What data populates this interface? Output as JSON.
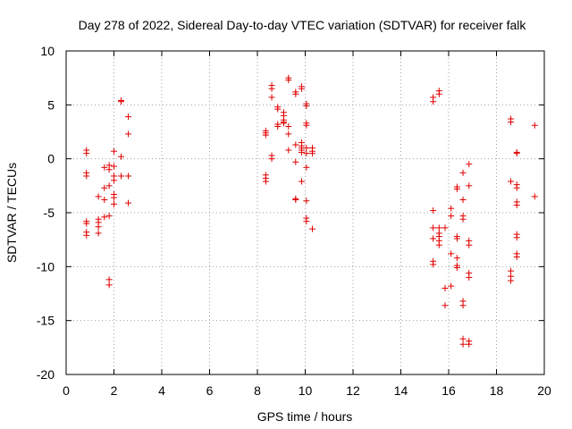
{
  "chart_data": {
    "type": "scatter",
    "title": "Day 278 of 2022, Sidereal Day-to-day VTEC variation (SDTVAR) for receiver falk",
    "xlabel": "GPS time / hours",
    "ylabel": "SDTVAR / TECUs",
    "xlim": [
      0,
      20
    ],
    "ylim": [
      -20,
      10
    ],
    "xticks": [
      0,
      2,
      4,
      6,
      8,
      10,
      12,
      14,
      16,
      18,
      20
    ],
    "yticks": [
      -20,
      -15,
      -10,
      -5,
      0,
      5,
      10
    ],
    "grid": true,
    "marker": "+",
    "color": "#e00000",
    "series": [
      {
        "name": "SDTVAR",
        "points": [
          [
            0.85,
            0.8
          ],
          [
            0.85,
            0.5
          ],
          [
            0.85,
            -1.3
          ],
          [
            0.85,
            -1.6
          ],
          [
            0.85,
            -5.8
          ],
          [
            0.85,
            -6.0
          ],
          [
            0.85,
            -6.8
          ],
          [
            0.85,
            -7.1
          ],
          [
            1.35,
            -3.5
          ],
          [
            1.35,
            -5.6
          ],
          [
            1.35,
            -5.9
          ],
          [
            1.35,
            -6.3
          ],
          [
            1.35,
            -6.9
          ],
          [
            1.6,
            -0.8
          ],
          [
            1.6,
            -2.7
          ],
          [
            1.6,
            -3.8
          ],
          [
            1.6,
            -5.4
          ],
          [
            1.8,
            -0.6
          ],
          [
            1.8,
            -1.0
          ],
          [
            1.8,
            -2.5
          ],
          [
            1.8,
            -5.3
          ],
          [
            1.8,
            -11.2
          ],
          [
            1.8,
            -11.7
          ],
          [
            2.0,
            0.7
          ],
          [
            2.0,
            -0.7
          ],
          [
            2.0,
            -1.6
          ],
          [
            2.0,
            -2.0
          ],
          [
            2.0,
            -3.3
          ],
          [
            2.0,
            -3.6
          ],
          [
            2.0,
            -4.2
          ],
          [
            2.3,
            5.4
          ],
          [
            2.3,
            5.3
          ],
          [
            2.3,
            0.2
          ],
          [
            2.3,
            -1.6
          ],
          [
            2.6,
            3.9
          ],
          [
            2.6,
            2.3
          ],
          [
            2.6,
            -1.6
          ],
          [
            2.6,
            -4.1
          ],
          [
            8.35,
            2.6
          ],
          [
            8.35,
            2.4
          ],
          [
            8.35,
            2.2
          ],
          [
            8.35,
            -1.5
          ],
          [
            8.35,
            -1.8
          ],
          [
            8.35,
            -2.1
          ],
          [
            8.6,
            6.8
          ],
          [
            8.6,
            6.5
          ],
          [
            8.6,
            5.7
          ],
          [
            8.6,
            0.3
          ],
          [
            8.6,
            0.0
          ],
          [
            8.85,
            4.8
          ],
          [
            8.85,
            4.6
          ],
          [
            8.85,
            3.2
          ],
          [
            8.85,
            3.0
          ],
          [
            9.1,
            4.3
          ],
          [
            9.1,
            4.0
          ],
          [
            9.1,
            3.6
          ],
          [
            9.1,
            3.4
          ],
          [
            9.1,
            3.3
          ],
          [
            9.3,
            7.5
          ],
          [
            9.3,
            7.3
          ],
          [
            9.3,
            3.0
          ],
          [
            9.3,
            2.3
          ],
          [
            9.3,
            0.8
          ],
          [
            9.6,
            6.2
          ],
          [
            9.6,
            6.0
          ],
          [
            9.6,
            1.3
          ],
          [
            9.6,
            -0.3
          ],
          [
            9.6,
            -3.7
          ],
          [
            9.6,
            -3.8
          ],
          [
            9.85,
            6.7
          ],
          [
            9.85,
            6.5
          ],
          [
            9.85,
            1.5
          ],
          [
            9.85,
            1.2
          ],
          [
            9.85,
            1.0
          ],
          [
            9.85,
            0.8
          ],
          [
            9.85,
            0.6
          ],
          [
            9.85,
            -2.1
          ],
          [
            10.05,
            5.1
          ],
          [
            10.05,
            4.9
          ],
          [
            10.05,
            3.3
          ],
          [
            10.05,
            3.1
          ],
          [
            10.05,
            1.0
          ],
          [
            10.05,
            0.5
          ],
          [
            10.05,
            -0.8
          ],
          [
            10.05,
            -3.9
          ],
          [
            10.05,
            -5.5
          ],
          [
            10.05,
            -5.8
          ],
          [
            10.3,
            1.0
          ],
          [
            10.3,
            0.7
          ],
          [
            10.3,
            0.5
          ],
          [
            10.3,
            -6.5
          ],
          [
            15.35,
            5.7
          ],
          [
            15.35,
            5.3
          ],
          [
            15.35,
            -4.8
          ],
          [
            15.35,
            -6.4
          ],
          [
            15.35,
            -7.4
          ],
          [
            15.35,
            -9.5
          ],
          [
            15.35,
            -9.8
          ],
          [
            15.6,
            6.3
          ],
          [
            15.6,
            6.0
          ],
          [
            15.6,
            -6.4
          ],
          [
            15.6,
            -6.9
          ],
          [
            15.6,
            -7.2
          ],
          [
            15.6,
            -7.6
          ],
          [
            15.6,
            -8.0
          ],
          [
            15.85,
            -6.4
          ],
          [
            15.85,
            -12.0
          ],
          [
            15.85,
            -13.6
          ],
          [
            16.1,
            -4.6
          ],
          [
            16.1,
            -5.3
          ],
          [
            16.1,
            -8.8
          ],
          [
            16.1,
            -11.8
          ],
          [
            16.35,
            -2.6
          ],
          [
            16.35,
            -2.8
          ],
          [
            16.35,
            -7.2
          ],
          [
            16.35,
            -7.4
          ],
          [
            16.35,
            -9.2
          ],
          [
            16.35,
            -9.9
          ],
          [
            16.35,
            -10.1
          ],
          [
            16.6,
            -1.3
          ],
          [
            16.6,
            -3.8
          ],
          [
            16.6,
            -5.3
          ],
          [
            16.6,
            -5.6
          ],
          [
            16.6,
            -13.2
          ],
          [
            16.6,
            -13.6
          ],
          [
            16.6,
            -16.7
          ],
          [
            16.6,
            -17.2
          ],
          [
            16.85,
            -0.5
          ],
          [
            16.85,
            -2.5
          ],
          [
            16.85,
            -7.6
          ],
          [
            16.85,
            -8.0
          ],
          [
            16.85,
            -10.6
          ],
          [
            16.85,
            -11.0
          ],
          [
            16.85,
            -16.9
          ],
          [
            16.85,
            -17.2
          ],
          [
            18.6,
            3.7
          ],
          [
            18.6,
            3.4
          ],
          [
            18.6,
            -2.1
          ],
          [
            18.6,
            -10.4
          ],
          [
            18.6,
            -10.9
          ],
          [
            18.6,
            -11.3
          ],
          [
            18.85,
            0.6
          ],
          [
            18.85,
            0.5
          ],
          [
            18.85,
            -2.4
          ],
          [
            18.85,
            -2.7
          ],
          [
            18.85,
            -4.0
          ],
          [
            18.85,
            -4.3
          ],
          [
            18.85,
            -7.0
          ],
          [
            18.85,
            -7.3
          ],
          [
            18.85,
            -8.8
          ],
          [
            18.85,
            -9.1
          ],
          [
            19.6,
            3.1
          ],
          [
            19.6,
            -3.5
          ]
        ]
      }
    ]
  }
}
